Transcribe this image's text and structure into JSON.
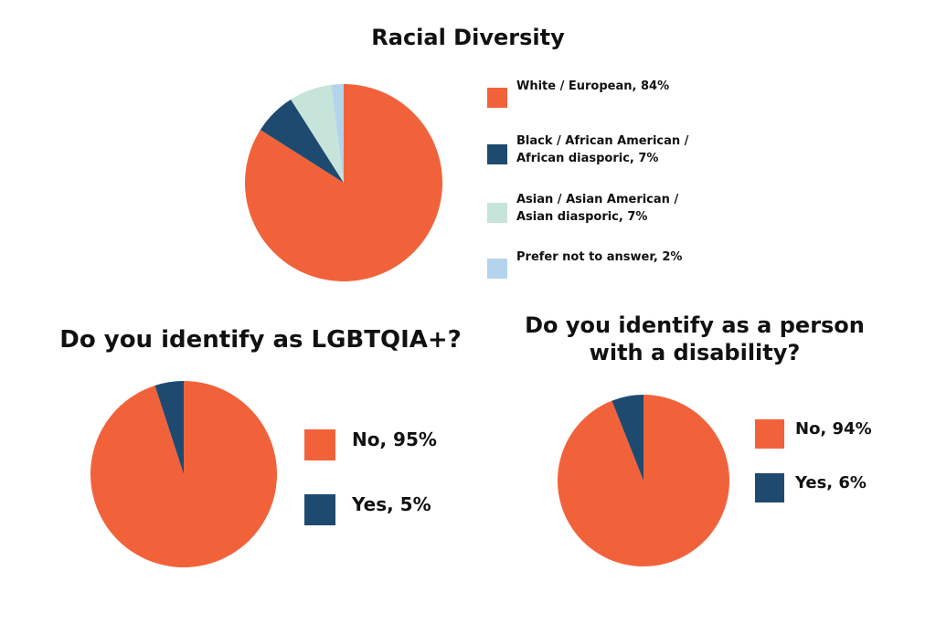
{
  "chart_data": [
    {
      "type": "pie",
      "title": "Racial Diversity",
      "labels": [
        "White / European, 84%",
        "Black / African American / African diasporic, 7%",
        "Asian / Asian American / Asian diasporic, 7%",
        "Prefer not to answer, 2%"
      ],
      "values": [
        84,
        7,
        7,
        2
      ],
      "colors": [
        "#f2623a",
        "#1f4a6f",
        "#c6e4d9",
        "#b3d4ec"
      ]
    },
    {
      "type": "pie",
      "title": "Do you identify as LGBTQIA+?",
      "labels": [
        "No, 95%",
        "Yes, 5%"
      ],
      "values": [
        95,
        5
      ],
      "colors": [
        "#f2623a",
        "#1f4a6f"
      ]
    },
    {
      "type": "pie",
      "title": "Do you identify as a person with a disability?",
      "labels": [
        "No, 94%",
        "Yes, 6%"
      ],
      "values": [
        94,
        6
      ],
      "colors": [
        "#f2623a",
        "#1f4a6f"
      ]
    }
  ]
}
